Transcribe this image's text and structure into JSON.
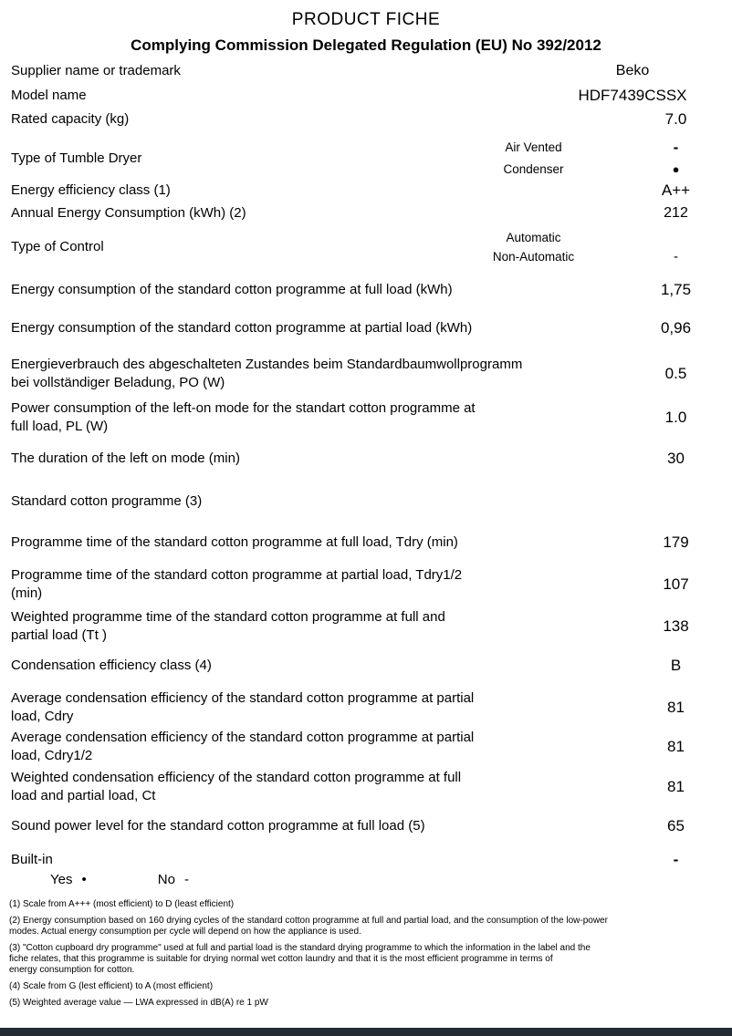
{
  "header": {
    "title": "PRODUCT FICHE",
    "subtitle": "Complying Commission Delegated Regulation (EU) No 392/2012"
  },
  "colors": {
    "text": "#000000",
    "background": "#ffffff",
    "bottom_bar": "#222c32"
  },
  "rows": [
    {
      "label": "Supplier name or trademark",
      "value": "Beko"
    },
    {
      "label": "Model name",
      "value": "HDF7439CSSX"
    },
    {
      "label": "Rated capacity (kg)",
      "value": "7.0"
    },
    {
      "label": "Type of Tumble Dryer",
      "subs": [
        {
          "name": "Air Vented",
          "value": "-"
        },
        {
          "name": "Condenser",
          "value": "●"
        }
      ]
    },
    {
      "label": "Energy efficiency class (1)",
      "value": "A++"
    },
    {
      "label": "Annual Energy Consumption (kWh) (2)",
      "value": "212"
    },
    {
      "label": "Type of Control",
      "subs": [
        {
          "name": "Automatic",
          "value": ""
        },
        {
          "name": "Non-Automatic",
          "value": "-"
        }
      ]
    },
    {
      "label": "Energy consumption of the standard cotton programme at full load (kWh)",
      "value": "1,75"
    },
    {
      "label": "Energy consumption of the standard cotton programme at partial load (kWh)",
      "value": "0,96"
    },
    {
      "label": "Energieverbrauch des abgeschalteten Zustandes beim Standardbaumwollprogramm\nbei vollständiger Beladung, PO (W)",
      "value": "0.5"
    },
    {
      "label": "Power consumption of the left-on mode for the standart cotton programme at\nfull load, PL (W)",
      "value": "1.0"
    },
    {
      "label": "The duration of the left on mode (min)",
      "value": "30"
    },
    {
      "label": "Standard cotton programme (3)",
      "value": ""
    },
    {
      "label": "Programme time of the standard cotton programme at full load, Tdry (min)",
      "value": "179"
    },
    {
      "label": "Programme time of the standard cotton programme at partial load, Tdry1/2\n(min)",
      "value": "107"
    },
    {
      "label": "Weighted programme time of the standard cotton programme at full and\npartial load (Tt )",
      "value": "138"
    },
    {
      "label": "Condensation efficiency class (4)",
      "value": "B"
    },
    {
      "label": "Average condensation efficiency of the standard cotton programme at partial\nload, Cdry",
      "value": "81"
    },
    {
      "label": "Average condensation efficiency of the standard cotton programme at partial\nload, Cdry1/2",
      "value": "81"
    },
    {
      "label": "Weighted condensation efficiency of the standard cotton programme at full\nload and partial load, Ct",
      "value": "81"
    },
    {
      "label": "Sound power level for the standard cotton programme at full load (5)",
      "value": "65"
    },
    {
      "label": "Built-in",
      "value": "-",
      "options": [
        {
          "label": "Yes",
          "mark": "•"
        },
        {
          "label": "No",
          "mark": "-"
        }
      ]
    }
  ],
  "footnotes": [
    "(1) Scale from A+++ (most efficient) to D (least efficient)",
    "(2) Energy consumption based on 160 drying cycles of the standard cotton programme at full and partial load, and the consumption of the low-power\nmodes. Actual energy consumption per cycle will depend on how the appliance is used.",
    "(3) \"Cotton cupboard dry programme\" used at full and partial load is the standard drying programme to which the information  in the label and the\nfiche relates, that this programme is suitable for drying normal wet cotton laundry and that it is the most efficient programme in terms of\nenergy consumption for cotton.",
    "(4) Scale from G (lest efficient) to A (most efficient)",
    "(5) Weighted average value — LWA    expressed in dB(A) re 1 pW"
  ]
}
